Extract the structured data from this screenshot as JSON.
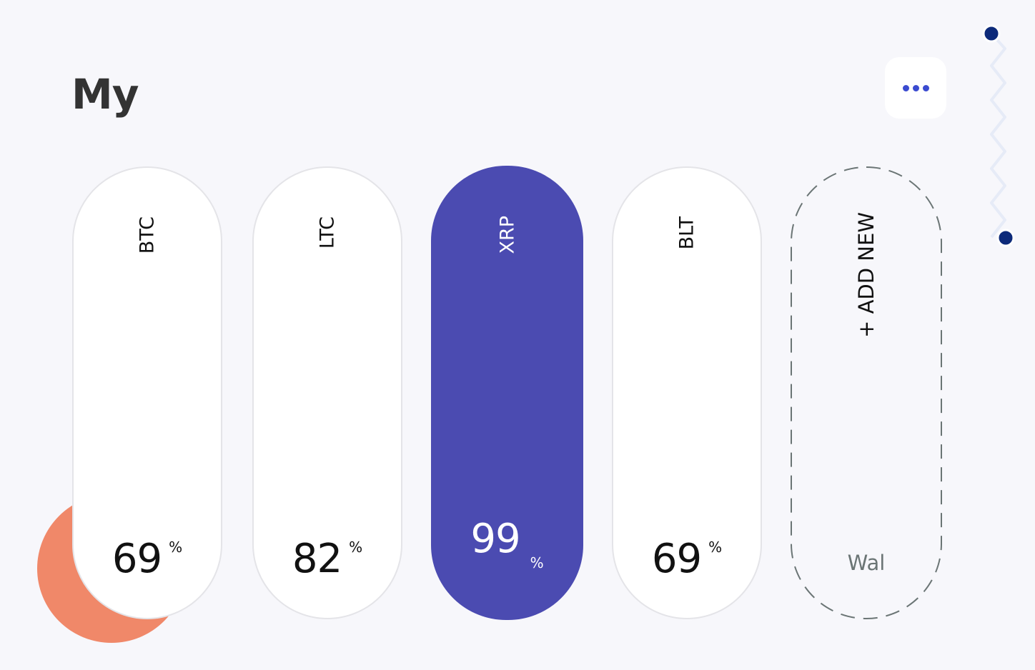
{
  "header": {
    "title": "My",
    "menu_icon": "more-horizontal-icon"
  },
  "colors": {
    "accent": "#4b4bb1",
    "blob": "#f08869",
    "dots": "#3b4bd0",
    "deco_dot": "#0d2a7a"
  },
  "wallets": [
    {
      "label": "BTC",
      "value": "69",
      "unit": "%",
      "active": false
    },
    {
      "label": "LTC",
      "value": "82",
      "unit": "%",
      "active": false
    },
    {
      "label": "XRP",
      "value": "99",
      "unit": "%",
      "active": true
    },
    {
      "label": "BLT",
      "value": "69",
      "unit": "%",
      "active": false
    }
  ],
  "add_new": {
    "label": "+ ADD NEW",
    "caption": "Wal"
  }
}
